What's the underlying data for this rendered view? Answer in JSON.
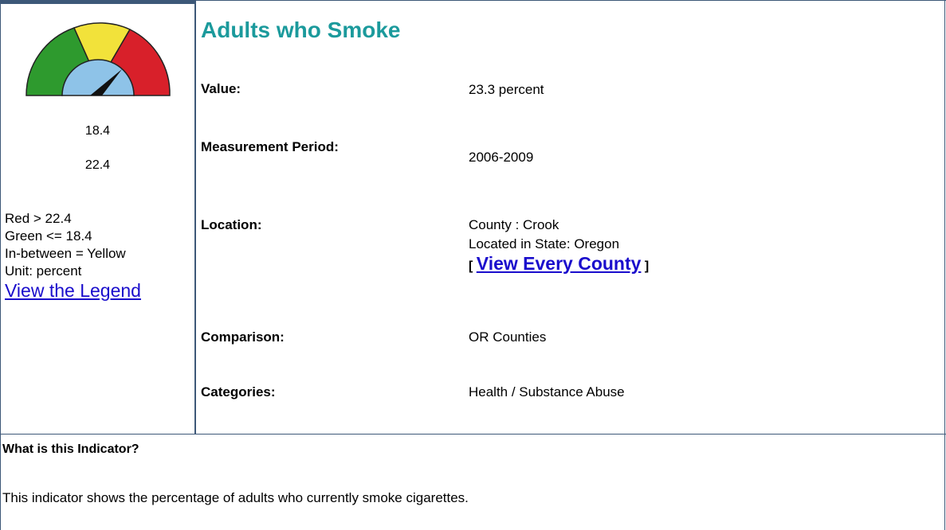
{
  "gauge": {
    "thresholds": [
      "18.4",
      "22.4"
    ],
    "legend_lines": [
      "Red > 22.4",
      "Green <= 18.4",
      "In-between = Yellow",
      "Unit: percent"
    ],
    "legend_link": "View the Legend"
  },
  "indicator": {
    "title": "Adults who Smoke",
    "rows": [
      {
        "label": "Value:",
        "value": "23.3 percent"
      },
      {
        "label": "Measurement Period:",
        "value": "2006-2009"
      },
      {
        "label": "Location:",
        "value": "County : Crook",
        "value2": "Located in State: Oregon",
        "link_open": "[",
        "link": "View Every County",
        "link_close": "]"
      },
      {
        "label": "Comparison:",
        "value": "OR Counties"
      },
      {
        "label": "Categories:",
        "value": "Health / Substance Abuse"
      }
    ]
  },
  "description": {
    "heading": "What is this Indicator?",
    "text": "This indicator shows the percentage of adults who currently smoke cigarettes."
  }
}
